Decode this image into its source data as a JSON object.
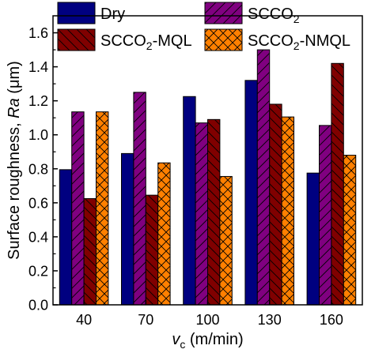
{
  "chart_data": {
    "type": "bar",
    "xlabel": {
      "main": "v",
      "sub": "c",
      "rest": " (m/min)"
    },
    "ylabel": {
      "pre": "Surface roughness, ",
      "italic": "Ra",
      "post": " (μm)"
    },
    "categories": [
      "40",
      "70",
      "100",
      "130",
      "160"
    ],
    "ylim": [
      0,
      1.7
    ],
    "yticks": [
      "0.0",
      "0.2",
      "0.4",
      "0.6",
      "0.8",
      "1.0",
      "1.2",
      "1.4",
      "1.6"
    ],
    "series": [
      {
        "name": "Dry",
        "label_main": "Dry",
        "label_sub": "",
        "label_rest": "",
        "color": "#000080",
        "pattern": "none",
        "values": [
          0.795,
          0.89,
          1.225,
          1.32,
          0.775
        ]
      },
      {
        "name": "SCCO2",
        "label_main": "SCCO",
        "label_sub": "2",
        "label_rest": "",
        "color": "#800080",
        "pattern": "fwd",
        "values": [
          1.135,
          1.25,
          1.07,
          1.5,
          1.055
        ]
      },
      {
        "name": "SCCO2-MQL",
        "label_main": "SCCO",
        "label_sub": "2",
        "label_rest": "-MQL",
        "color": "#800000",
        "pattern": "back",
        "values": [
          0.625,
          0.645,
          1.09,
          1.18,
          1.42
        ]
      },
      {
        "name": "SCCO2-NMQL",
        "label_main": "SCCO",
        "label_sub": "2",
        "label_rest": "-NMQL",
        "color": "#FF8000",
        "pattern": "cross",
        "values": [
          1.135,
          0.835,
          0.755,
          1.105,
          0.88
        ]
      }
    ],
    "legend": "top"
  }
}
